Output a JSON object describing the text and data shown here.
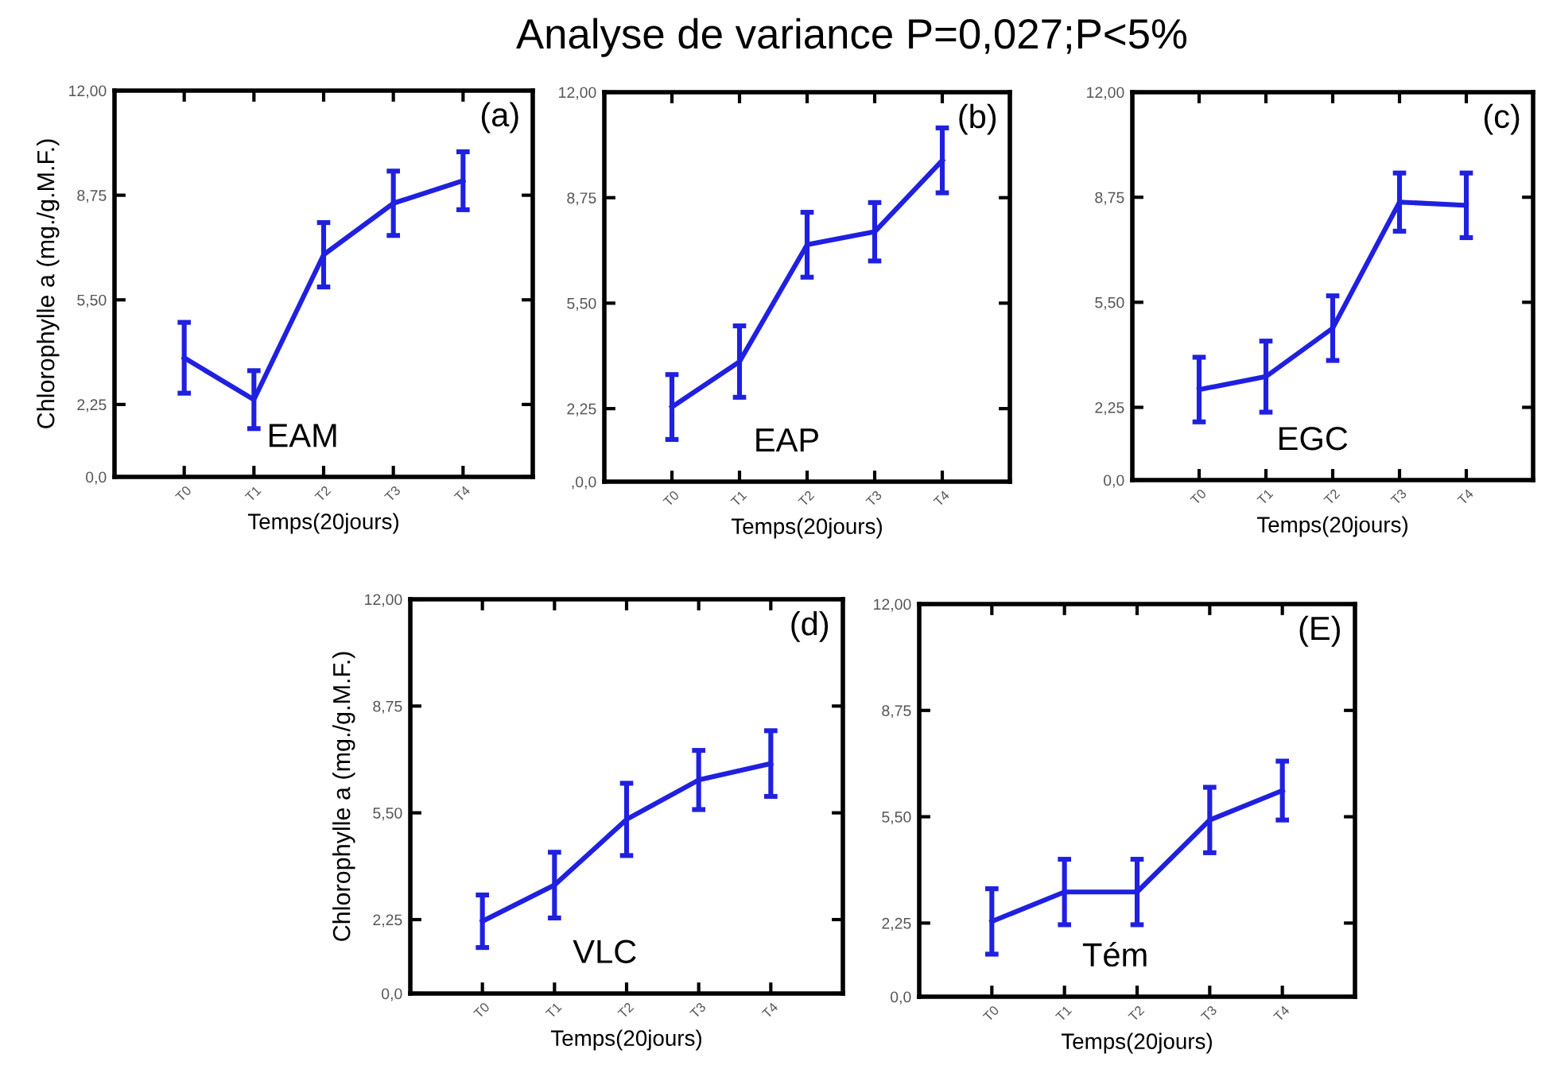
{
  "chart_data": [
    {
      "type": "other",
      "title": "Analyse de variance P=0,027;P<5%"
    },
    {
      "type": "line",
      "xlabel": "Temps(20jours)",
      "ylabel": "Chlorophylle a (mg./g.M.F.)",
      "categories": [
        "T0",
        "T1",
        "T2",
        "T3",
        "T4"
      ],
      "ylim": [
        0,
        12
      ],
      "yticks": [
        {
          "value": 0,
          "label": "0,0"
        },
        {
          "value": 2.25,
          "label": "2,25"
        },
        {
          "value": 5.5,
          "label": "5,50"
        },
        {
          "value": 8.75,
          "label": "8,75"
        },
        {
          "value": 12,
          "label": "12,00"
        }
      ],
      "series": [
        {
          "color": "#2020e0",
          "values": [
            3.7,
            2.4,
            6.9,
            8.5,
            9.2
          ],
          "errors": [
            1.1,
            0.9,
            1.0,
            1.0,
            0.9
          ]
        }
      ],
      "annotations": [
        "(a)",
        "EAM"
      ],
      "grid": false,
      "legend": false
    },
    {
      "type": "line",
      "xlabel": "Temps(20jours)",
      "categories": [
        "T0",
        "T1",
        "T2",
        "T3",
        "T4"
      ],
      "ylim": [
        0,
        12
      ],
      "yticks": [
        {
          "value": 0,
          "label": ",0,0"
        },
        {
          "value": 2.25,
          "label": "2,25"
        },
        {
          "value": 5.5,
          "label": "5,50"
        },
        {
          "value": 8.75,
          "label": "8,75"
        },
        {
          "value": 12,
          "label": "12,00"
        }
      ],
      "series": [
        {
          "color": "#2020e0",
          "values": [
            2.3,
            3.7,
            7.3,
            7.7,
            9.9
          ],
          "errors": [
            1.0,
            1.1,
            1.0,
            0.9,
            1.0
          ]
        }
      ],
      "annotations": [
        "(b)",
        "EAP"
      ],
      "grid": false,
      "legend": false
    },
    {
      "type": "line",
      "xlabel": "Temps(20jours)",
      "categories": [
        "T0",
        "T1",
        "T2",
        "T3",
        "T4"
      ],
      "ylim": [
        0,
        12
      ],
      "yticks": [
        {
          "value": 0,
          "label": "0,0"
        },
        {
          "value": 2.25,
          "label": "2,25"
        },
        {
          "value": 5.5,
          "label": "5,50"
        },
        {
          "value": 8.75,
          "label": "8,75"
        },
        {
          "value": 12,
          "label": "12,00"
        }
      ],
      "series": [
        {
          "color": "#2020e0",
          "values": [
            2.8,
            3.2,
            4.7,
            8.6,
            8.5
          ],
          "errors": [
            1.0,
            1.1,
            1.0,
            0.9,
            1.0
          ]
        }
      ],
      "annotations": [
        "(c)",
        "EGC"
      ],
      "grid": false,
      "legend": false
    },
    {
      "type": "line",
      "xlabel": "Temps(20jours)",
      "ylabel": "Chlorophylle a (mg./g.M.F.)",
      "categories": [
        "T0",
        "T1",
        "T2",
        "T3",
        "T4"
      ],
      "ylim": [
        0,
        12
      ],
      "yticks": [
        {
          "value": 0,
          "label": "0,0"
        },
        {
          "value": 2.25,
          "label": "2,25"
        },
        {
          "value": 5.5,
          "label": "5,50"
        },
        {
          "value": 8.75,
          "label": "8,75"
        },
        {
          "value": 12,
          "label": "12,00"
        }
      ],
      "series": [
        {
          "color": "#2020e0",
          "values": [
            2.2,
            3.3,
            5.3,
            6.5,
            7.0
          ],
          "errors": [
            0.8,
            1.0,
            1.1,
            0.9,
            1.0
          ]
        }
      ],
      "annotations": [
        "(d)",
        "VLC"
      ],
      "grid": false,
      "legend": false
    },
    {
      "type": "line",
      "xlabel": "Temps(20jours)",
      "categories": [
        "T0",
        "T1",
        "T2",
        "T3",
        "T4"
      ],
      "ylim": [
        0,
        12
      ],
      "yticks": [
        {
          "value": 0,
          "label": "0,0"
        },
        {
          "value": 2.25,
          "label": "2,25"
        },
        {
          "value": 5.5,
          "label": "5,50"
        },
        {
          "value": 8.75,
          "label": "8,75"
        },
        {
          "value": 12,
          "label": "12,00"
        }
      ],
      "series": [
        {
          "color": "#2020e0",
          "values": [
            2.3,
            3.2,
            3.2,
            5.4,
            6.3
          ],
          "errors": [
            1.0,
            1.0,
            1.0,
            1.0,
            0.9
          ]
        }
      ],
      "annotations": [
        "(E)",
        "Tém"
      ],
      "grid": false,
      "legend": false
    }
  ]
}
